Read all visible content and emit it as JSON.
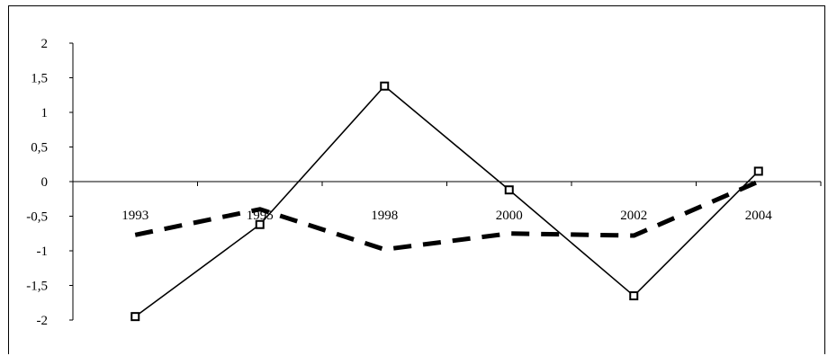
{
  "chart_data": {
    "type": "line",
    "categories": [
      "1993",
      "1995",
      "1998",
      "2000",
      "2002",
      "2004"
    ],
    "series": [
      {
        "values": [
          -1.95,
          -0.62,
          1.38,
          -0.12,
          -1.65,
          0.15
        ],
        "color": "#000000",
        "style": "solid",
        "marker": "square"
      },
      {
        "values": [
          -0.77,
          -0.4,
          -0.98,
          -0.75,
          -0.78,
          0.0
        ],
        "color": "#000000",
        "style": "dashed",
        "marker": "none"
      }
    ],
    "yticks": [
      "2",
      "1,5",
      "1",
      "0,5",
      "0",
      "-0,5",
      "-1",
      "-1,5",
      "-2"
    ],
    "ylim": [
      -2,
      2
    ],
    "grid": false,
    "legend": "none"
  }
}
